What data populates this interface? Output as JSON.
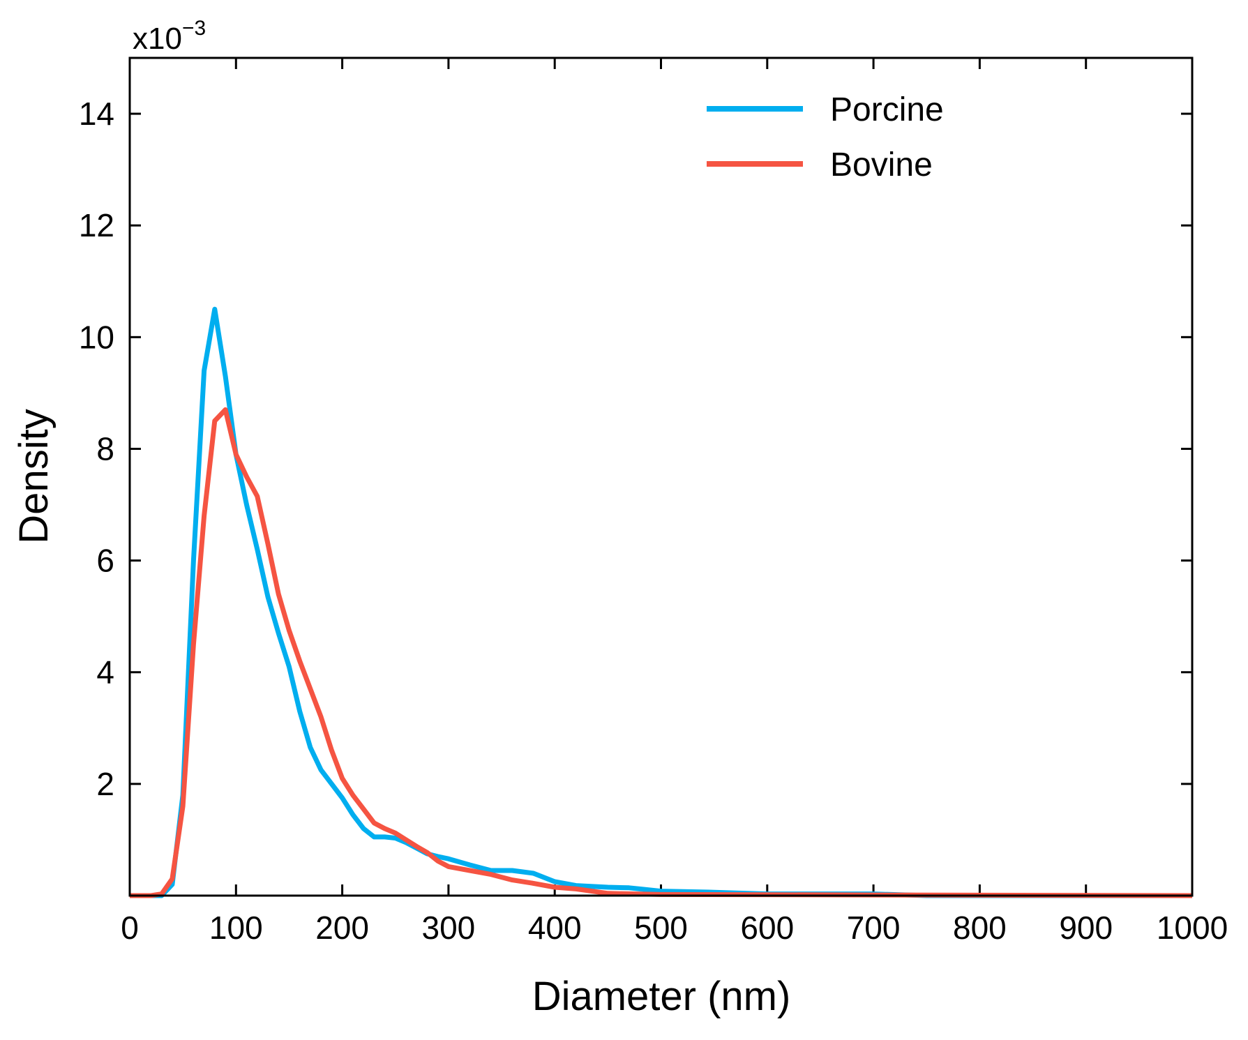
{
  "chart_data": {
    "type": "line",
    "title": "",
    "xlabel": "Diameter (nm)",
    "ylabel": "Density",
    "y_multiplier_label": "x10",
    "y_multiplier_exponent": "−3",
    "xlim": [
      0,
      1000
    ],
    "ylim": [
      0,
      15
    ],
    "xticks": [
      0,
      100,
      200,
      300,
      400,
      500,
      600,
      700,
      800,
      900,
      1000
    ],
    "xtick_labels": [
      "0",
      "100",
      "200",
      "300",
      "400",
      "500",
      "600",
      "700",
      "800",
      "900",
      "1000"
    ],
    "yticks": [
      2,
      4,
      6,
      8,
      10,
      12,
      14
    ],
    "ytick_labels": [
      "2",
      "4",
      "6",
      "8",
      "10",
      "12",
      "14"
    ],
    "grid": false,
    "legend_position": "top-right",
    "series": [
      {
        "name": "Porcine",
        "color": "#00AEEF",
        "x": [
          0,
          30,
          40,
          50,
          60,
          70,
          80,
          90,
          100,
          110,
          120,
          130,
          140,
          150,
          160,
          170,
          180,
          190,
          200,
          210,
          220,
          230,
          240,
          250,
          260,
          270,
          280,
          290,
          300,
          320,
          340,
          360,
          380,
          400,
          420,
          450,
          470,
          500,
          550,
          600,
          700,
          750,
          1000
        ],
        "y": [
          0,
          0,
          0.2,
          1.8,
          6.0,
          9.4,
          10.5,
          9.3,
          7.9,
          7.0,
          6.2,
          5.35,
          4.7,
          4.1,
          3.3,
          2.65,
          2.25,
          2.0,
          1.75,
          1.45,
          1.2,
          1.05,
          1.05,
          1.03,
          0.95,
          0.85,
          0.75,
          0.7,
          0.66,
          0.55,
          0.45,
          0.45,
          0.4,
          0.25,
          0.18,
          0.15,
          0.14,
          0.08,
          0.06,
          0.03,
          0.03,
          0,
          0
        ]
      },
      {
        "name": "Bovine",
        "color": "#F55442",
        "x": [
          0,
          20,
          30,
          40,
          50,
          60,
          70,
          80,
          90,
          100,
          110,
          120,
          130,
          140,
          150,
          160,
          170,
          180,
          190,
          200,
          210,
          220,
          230,
          240,
          250,
          260,
          270,
          280,
          290,
          300,
          320,
          340,
          360,
          380,
          400,
          420,
          450,
          500,
          1000
        ],
        "y": [
          0,
          0,
          0.03,
          0.3,
          1.6,
          4.5,
          6.8,
          8.5,
          8.7,
          7.9,
          7.5,
          7.15,
          6.3,
          5.4,
          4.75,
          4.2,
          3.7,
          3.2,
          2.6,
          2.1,
          1.8,
          1.55,
          1.3,
          1.2,
          1.12,
          1.0,
          0.88,
          0.77,
          0.62,
          0.52,
          0.45,
          0.38,
          0.28,
          0.22,
          0.15,
          0.12,
          0.04,
          0.02,
          0
        ]
      }
    ]
  }
}
